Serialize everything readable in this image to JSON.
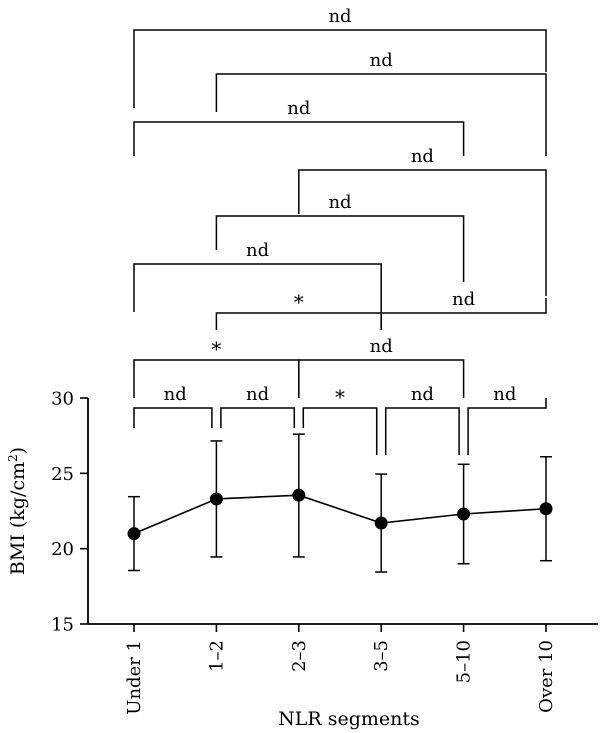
{
  "chart_data": {
    "type": "line",
    "title": "",
    "xlabel": "NLR segments",
    "ylabel": {
      "main": "BMI (kg/cm",
      "sup": "2",
      "close": ")"
    },
    "categories": [
      "Under 1",
      "1–2",
      "2–3",
      "3–5",
      "5–10",
      "Over 10"
    ],
    "ylim": [
      15,
      30
    ],
    "yticks": [
      15,
      20,
      25,
      30
    ],
    "grid": false,
    "series": [
      {
        "values": [
          21.0,
          23.3,
          23.55,
          21.7,
          22.3,
          22.65
        ],
        "err_low": [
          18.55,
          19.45,
          19.45,
          18.45,
          19.0,
          19.2
        ],
        "err_high": [
          23.45,
          27.15,
          27.6,
          24.95,
          25.6,
          26.1
        ]
      }
    ],
    "comparisons": [
      {
        "from": 0,
        "to": 1,
        "label": "nd"
      },
      {
        "from": 1,
        "to": 2,
        "label": "nd"
      },
      {
        "from": 2,
        "to": 3,
        "label": "*"
      },
      {
        "from": 3,
        "to": 4,
        "label": "nd"
      },
      {
        "from": 4,
        "to": 5,
        "label": "nd"
      },
      {
        "from": 0,
        "to": 2,
        "label": "*"
      },
      {
        "from": 2,
        "to": 4,
        "label": "nd"
      },
      {
        "from": 1,
        "to": 3,
        "label": "*"
      },
      {
        "from": 3,
        "to": 5,
        "label": "nd"
      },
      {
        "from": 0,
        "to": 3,
        "label": "nd"
      },
      {
        "from": 1,
        "to": 4,
        "label": "nd"
      },
      {
        "from": 2,
        "to": 5,
        "label": "nd"
      },
      {
        "from": 0,
        "to": 4,
        "label": "nd"
      },
      {
        "from": 1,
        "to": 5,
        "label": "nd"
      },
      {
        "from": 0,
        "to": 5,
        "label": "nd"
      }
    ]
  }
}
